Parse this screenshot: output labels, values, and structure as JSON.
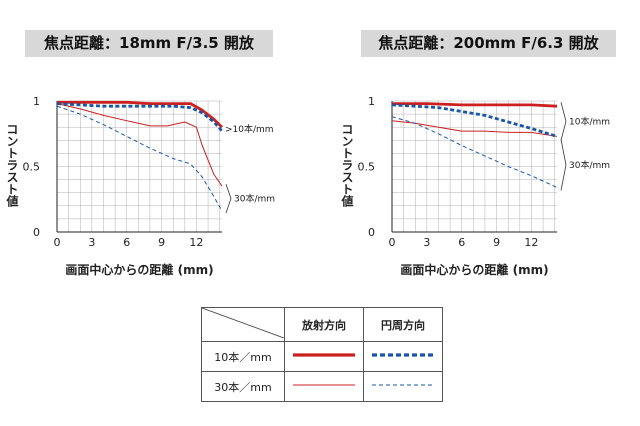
{
  "colors": {
    "radial": "#cc2020",
    "circumferential": "#1a56a8",
    "grid": "#b0b0b0"
  },
  "legend": {
    "col_headers": [
      "放射方向",
      "円周方向"
    ],
    "row_headers": [
      "10本／mm",
      "30本／mm"
    ]
  },
  "chart_data": [
    {
      "type": "line",
      "title": "焦点距離：18mm  F/3.5 開放",
      "xlabel": "画面中心からの距離 (mm)",
      "ylabel": "コントラスト値",
      "xlim": [
        0,
        14.2
      ],
      "ylim": [
        0,
        1
      ],
      "xticks": [
        "0",
        "3",
        "6",
        "9",
        "12"
      ],
      "xtick_values": [
        0,
        3,
        6,
        9,
        12
      ],
      "yticks": [
        "0",
        "0.5",
        "1"
      ],
      "ytick_values": [
        0,
        0.5,
        1
      ],
      "grid": true,
      "annotations": [
        {
          "text": ">10本/mm",
          "applies_to": "10本/mm"
        },
        {
          "text": "30本/mm",
          "applies_to": "30本/mm"
        }
      ],
      "series": [
        {
          "freq": "10本/mm",
          "direction": "radial",
          "style": "solid-thick",
          "x": [
            0,
            2,
            4,
            6,
            8,
            10,
            11.5,
            12.5,
            13.5,
            14.2
          ],
          "y": [
            0.99,
            0.99,
            0.99,
            0.99,
            0.98,
            0.98,
            0.98,
            0.93,
            0.86,
            0.8
          ]
        },
        {
          "freq": "10本/mm",
          "direction": "circumferential",
          "style": "dashed-thick",
          "x": [
            0,
            2,
            4,
            6,
            8,
            10,
            11.5,
            12.5,
            13.5,
            14.2
          ],
          "y": [
            0.98,
            0.97,
            0.96,
            0.96,
            0.96,
            0.96,
            0.95,
            0.91,
            0.84,
            0.77
          ]
        },
        {
          "freq": "30本/mm",
          "direction": "radial",
          "style": "solid-thin",
          "x": [
            0,
            2,
            4,
            6,
            8,
            9.5,
            11,
            12,
            12.5,
            13.5,
            14.2
          ],
          "y": [
            0.98,
            0.94,
            0.89,
            0.85,
            0.81,
            0.81,
            0.84,
            0.8,
            0.66,
            0.44,
            0.35
          ]
        },
        {
          "freq": "30本/mm",
          "direction": "circumferential",
          "style": "dashed-thin",
          "x": [
            0,
            2,
            4,
            6,
            8,
            10,
            11.5,
            12.5,
            13.5,
            14.2
          ],
          "y": [
            0.96,
            0.9,
            0.82,
            0.73,
            0.64,
            0.56,
            0.52,
            0.42,
            0.27,
            0.16
          ]
        }
      ]
    },
    {
      "type": "line",
      "title": "焦点距離：200mm  F/6.3 開放",
      "xlabel": "画面中心からの距離 (mm)",
      "ylabel": "コントラスト値",
      "xlim": [
        0,
        14.2
      ],
      "ylim": [
        0,
        1
      ],
      "xticks": [
        "0",
        "3",
        "6",
        "9",
        "12"
      ],
      "xtick_values": [
        0,
        3,
        6,
        9,
        12
      ],
      "yticks": [
        "0",
        "0.5",
        "1"
      ],
      "ytick_values": [
        0,
        0.5,
        1
      ],
      "grid": true,
      "annotations": [
        {
          "text": "10本/mm",
          "applies_to": "10本/mm"
        },
        {
          "text": "30本/mm",
          "applies_to": "30本/mm"
        }
      ],
      "series": [
        {
          "freq": "10本/mm",
          "direction": "radial",
          "style": "solid-thick",
          "x": [
            0,
            3,
            6,
            9,
            12,
            14.2
          ],
          "y": [
            0.98,
            0.98,
            0.97,
            0.97,
            0.97,
            0.96
          ]
        },
        {
          "freq": "10本/mm",
          "direction": "circumferential",
          "style": "dashed-thick",
          "x": [
            0,
            2,
            4,
            6,
            8,
            10,
            12,
            14.2
          ],
          "y": [
            0.97,
            0.96,
            0.95,
            0.92,
            0.89,
            0.84,
            0.79,
            0.73
          ]
        },
        {
          "freq": "30本/mm",
          "direction": "radial",
          "style": "solid-thin",
          "x": [
            0,
            2,
            4,
            6,
            8,
            10,
            12,
            14.2
          ],
          "y": [
            0.85,
            0.83,
            0.8,
            0.77,
            0.77,
            0.76,
            0.76,
            0.73
          ]
        },
        {
          "freq": "30本/mm",
          "direction": "circumferential",
          "style": "dashed-thin",
          "x": [
            0,
            2,
            4,
            6,
            8,
            10,
            12,
            14.2
          ],
          "y": [
            0.88,
            0.83,
            0.75,
            0.66,
            0.58,
            0.5,
            0.43,
            0.34
          ]
        }
      ]
    }
  ]
}
